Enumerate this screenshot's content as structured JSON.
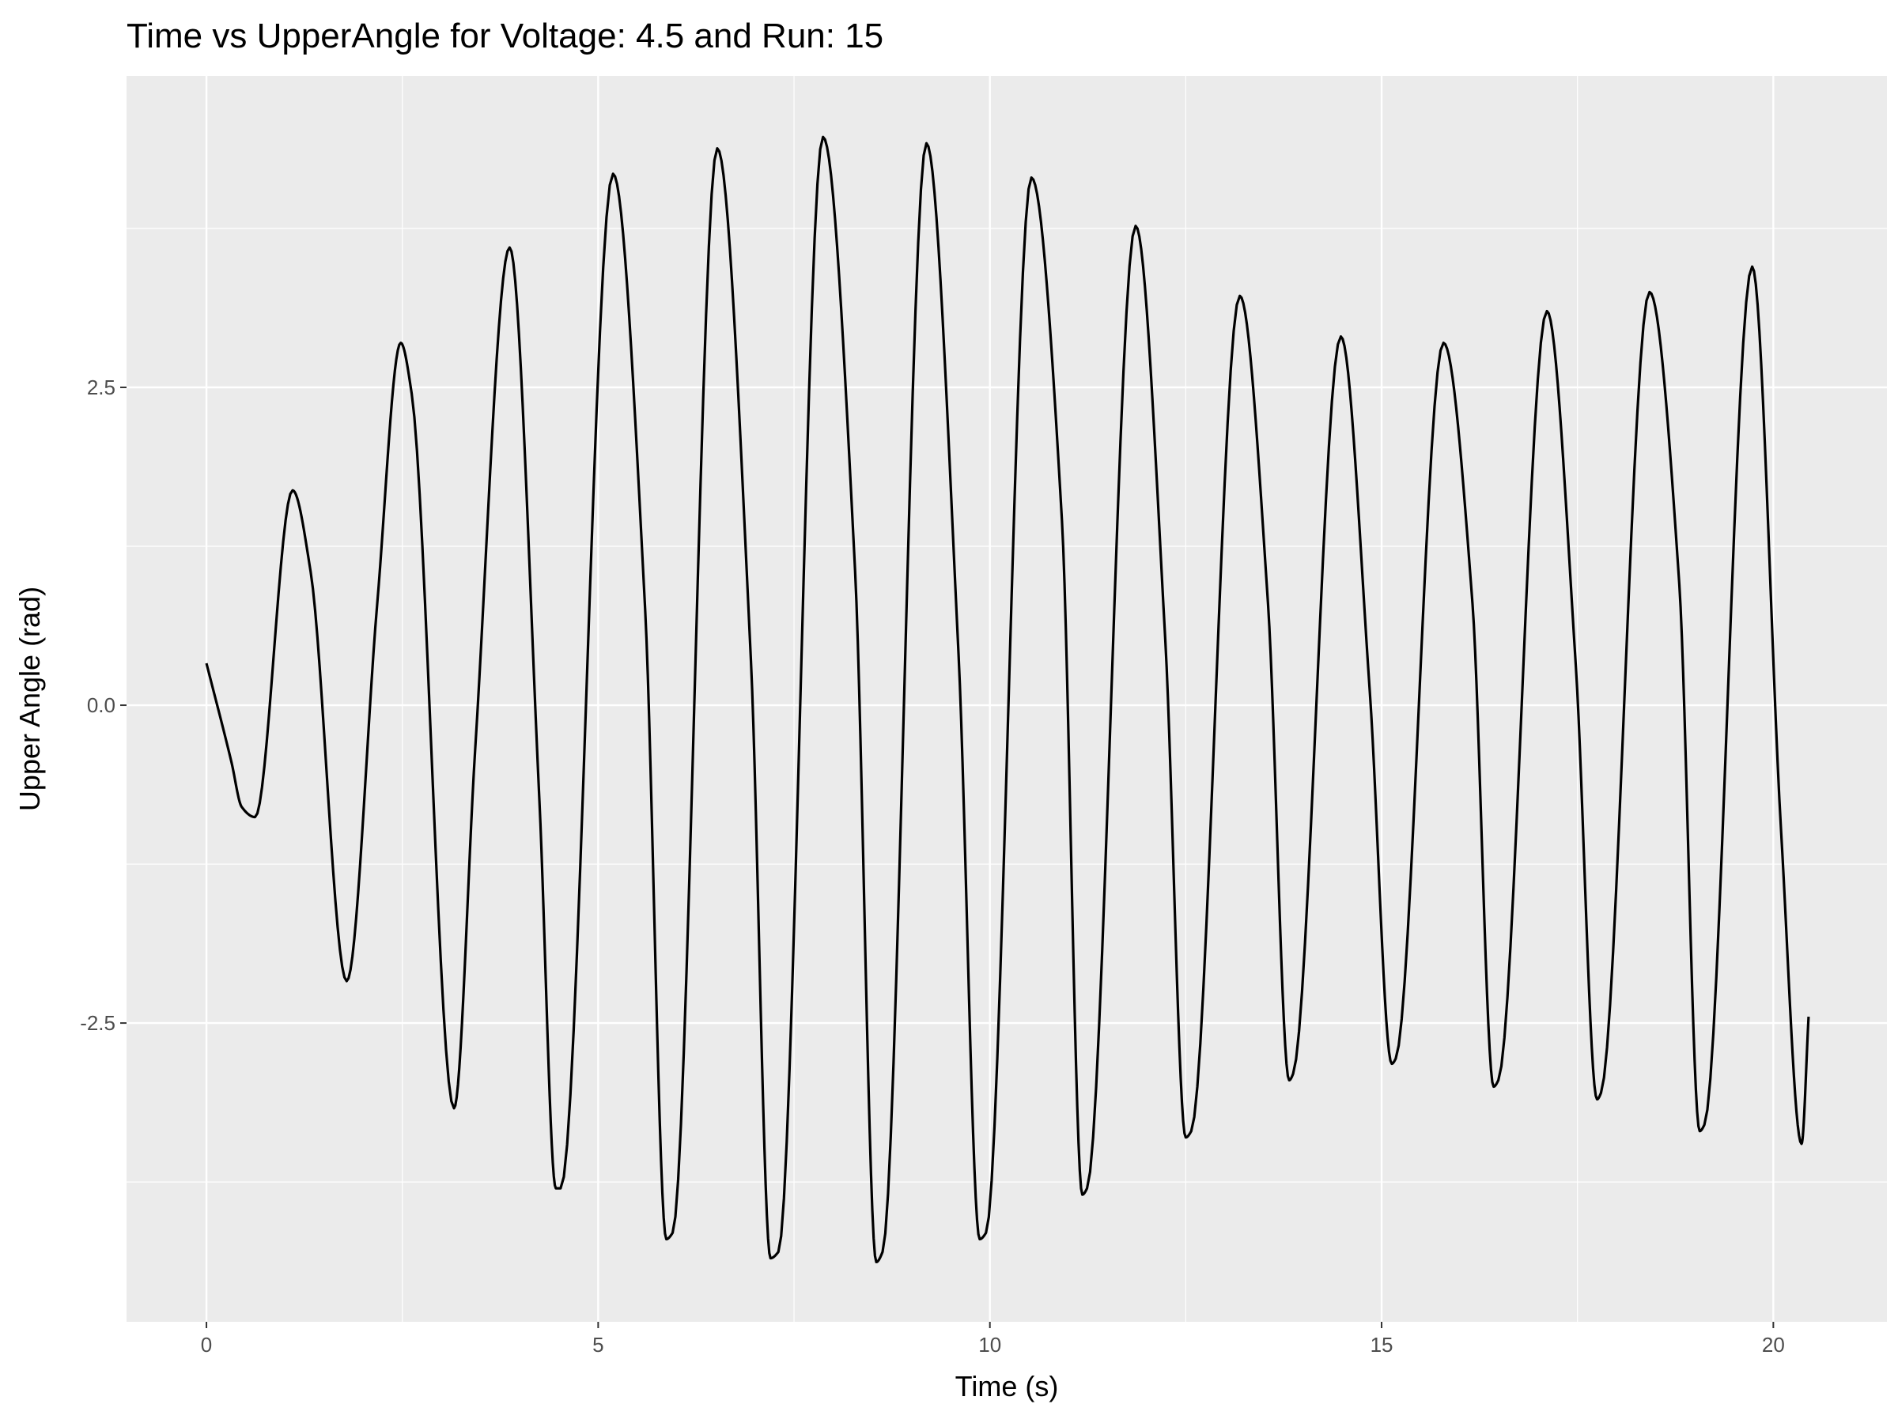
{
  "chart_data": {
    "type": "line",
    "title": "Time vs UpperAngle for Voltage: 4.5 and Run: 15",
    "xlabel": "Time (s)",
    "ylabel": "Upper Angle (rad)",
    "xlim": [
      -1.02,
      21.45
    ],
    "ylim": [
      -4.85,
      4.95
    ],
    "x_ticks": [
      0,
      5,
      10,
      15,
      20
    ],
    "x_tick_labels": [
      "0",
      "5",
      "10",
      "15",
      "20"
    ],
    "y_ticks": [
      -2.5,
      0.0,
      2.5
    ],
    "y_tick_labels": [
      "-2.5",
      "0.0",
      "2.5"
    ],
    "grid": true,
    "legend": "none",
    "series": [
      {
        "color": "#000000",
        "x": [
          0,
          0.32,
          0.45,
          0.62,
          1.1,
          1.33,
          1.79,
          2.18,
          2.48,
          2.62,
          3.16,
          3.43,
          3.87,
          4.25,
          4.46,
          4.52,
          5.19,
          5.6,
          5.87,
          5.95,
          6.52,
          6.95,
          7.2,
          7.3,
          7.87,
          8.28,
          8.55,
          8.63,
          9.19,
          9.6,
          9.87,
          9.95,
          10.53,
          10.92,
          11.18,
          11.24,
          11.86,
          12.24,
          12.5,
          12.57,
          13.19,
          13.55,
          13.82,
          13.87,
          14.48,
          14.85,
          15.13,
          15.18,
          15.79,
          16.16,
          16.43,
          16.49,
          17.11,
          17.48,
          17.75,
          17.8,
          18.42,
          18.8,
          19.06,
          19.12,
          19.73,
          20.1,
          20.36,
          20.45
        ],
        "y": [
          0.33,
          -0.45,
          -0.8,
          -0.88,
          1.69,
          1.05,
          -2.17,
          0.8,
          2.85,
          2.45,
          -3.17,
          -0.35,
          3.6,
          -0.75,
          -3.8,
          -3.8,
          4.18,
          0.75,
          -4.2,
          -4.15,
          4.38,
          0.35,
          -4.35,
          -4.3,
          4.47,
          1.05,
          -4.38,
          -4.3,
          4.42,
          0.4,
          -4.2,
          -4.15,
          4.15,
          1.45,
          -3.85,
          -3.8,
          3.77,
          0.5,
          -3.4,
          -3.35,
          3.22,
          0.8,
          -2.95,
          -2.9,
          2.9,
          0.1,
          -2.82,
          -2.78,
          2.85,
          0.8,
          -3.0,
          -2.95,
          3.1,
          0.3,
          -3.1,
          -3.05,
          3.25,
          0.95,
          -3.35,
          -3.3,
          3.45,
          -1.0,
          -3.45,
          -2.45
        ]
      }
    ]
  }
}
